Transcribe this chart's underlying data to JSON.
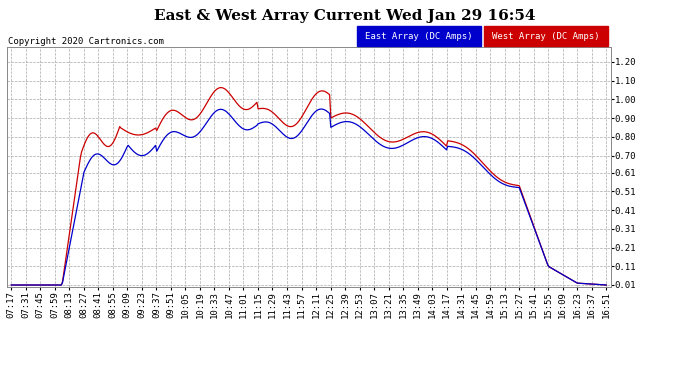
{
  "title": "East & West Array Current Wed Jan 29 16:54",
  "copyright": "Copyright 2020 Cartronics.com",
  "east_label": "East Array (DC Amps)",
  "west_label": "West Array (DC Amps)",
  "east_color": "#0000cc",
  "west_color": "#cc0000",
  "background_color": "#ffffff",
  "grid_color": "#aaaaaa",
  "yticks": [
    0.01,
    0.11,
    0.21,
    0.31,
    0.41,
    0.51,
    0.61,
    0.7,
    0.8,
    0.9,
    1.0,
    1.1,
    1.2
  ],
  "ytick_labels": [
    "0.01",
    "0.11",
    "0.21",
    "0.31",
    "0.41",
    "0.51",
    "0.61",
    "0.70",
    "0.80",
    "0.90",
    "1.00",
    "1.10",
    "1.20"
  ],
  "ylim": [
    0.0,
    1.28
  ],
  "xtick_labels": [
    "07:17",
    "07:31",
    "07:45",
    "07:59",
    "08:13",
    "08:27",
    "08:41",
    "08:55",
    "09:09",
    "09:23",
    "09:37",
    "09:51",
    "10:05",
    "10:19",
    "10:33",
    "10:47",
    "11:01",
    "11:15",
    "11:29",
    "11:43",
    "11:57",
    "12:11",
    "12:25",
    "12:39",
    "12:53",
    "13:07",
    "13:21",
    "13:35",
    "13:49",
    "14:03",
    "14:17",
    "14:31",
    "14:45",
    "14:59",
    "15:13",
    "15:27",
    "15:41",
    "15:55",
    "16:09",
    "16:23",
    "16:37",
    "16:51"
  ],
  "title_fontsize": 11,
  "label_fontsize": 6.5,
  "copyright_fontsize": 6.5
}
